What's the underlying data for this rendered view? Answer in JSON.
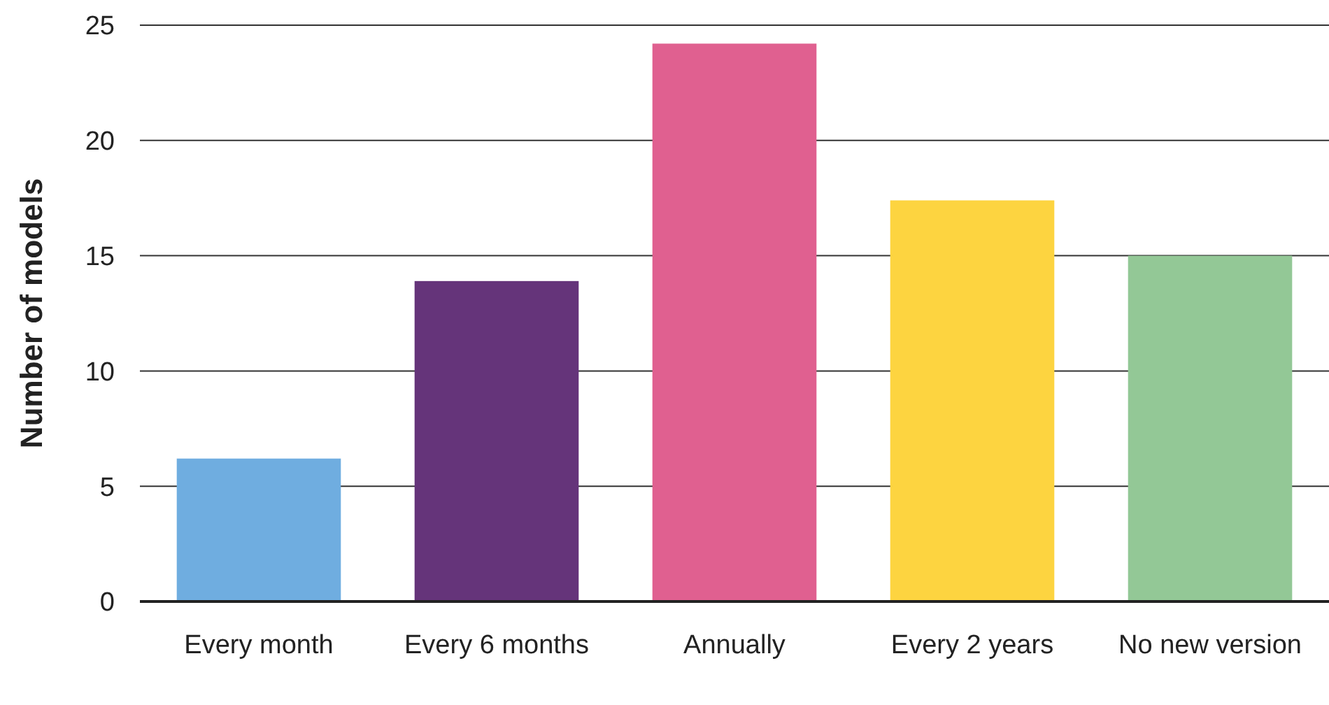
{
  "chart_data": {
    "type": "bar",
    "ylabel": "Number of models",
    "categories": [
      "Every month",
      "Every 6 months",
      "Annually",
      "Every 2 years",
      "No new version"
    ],
    "values": [
      6.2,
      13.9,
      24.2,
      17.4,
      15.0
    ],
    "colors": [
      "#6fade0",
      "#65347a",
      "#e06090",
      "#fdd440",
      "#93c896"
    ],
    "ylim": [
      0,
      25
    ],
    "yticks": [
      0,
      5,
      10,
      15,
      20,
      25
    ],
    "grid": "y"
  }
}
